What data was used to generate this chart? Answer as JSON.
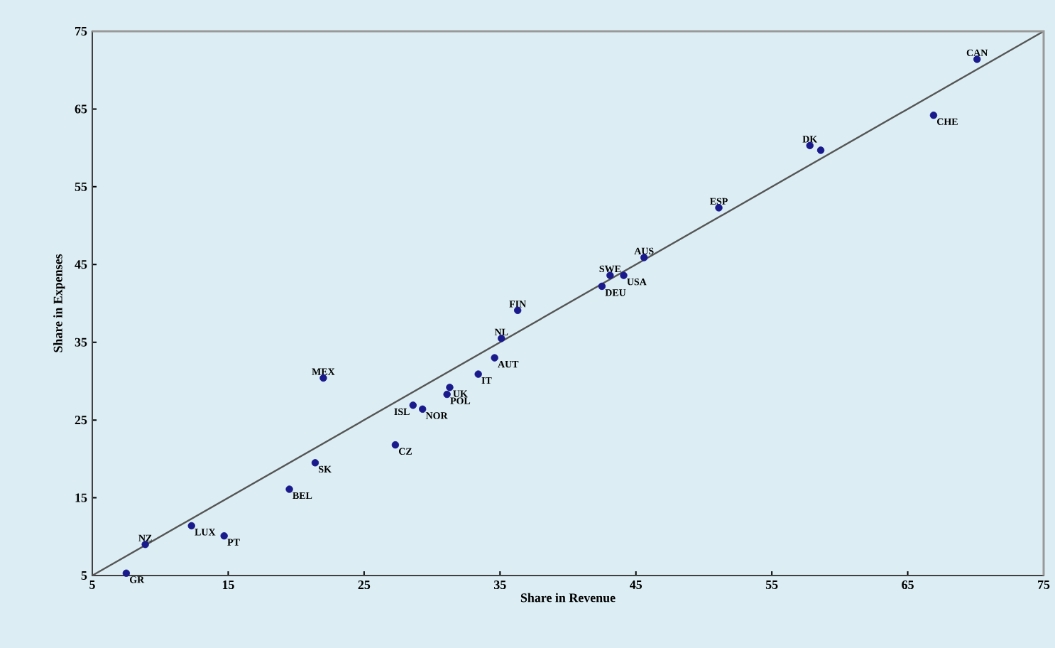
{
  "chart_data": {
    "type": "scatter",
    "xlabel": "Share in Revenue",
    "ylabel": "Share in Expenses",
    "xlim": [
      5,
      75
    ],
    "ylim": [
      5,
      75
    ],
    "xticks": [
      5,
      15,
      25,
      35,
      45,
      55,
      65,
      75
    ],
    "yticks": [
      5,
      15,
      25,
      35,
      45,
      55,
      65,
      75
    ],
    "grid": false,
    "marker": "circle",
    "series": [
      {
        "color": "#1a1a8c",
        "x": [
          7.5,
          8.9,
          12.3,
          14.7,
          19.5,
          21.4,
          22.0,
          27.3,
          28.6,
          29.3,
          31.3,
          31.1,
          33.4,
          34.6,
          35.1,
          36.3,
          42.5,
          43.1,
          44.1,
          45.6,
          51.1,
          57.8,
          58.6,
          66.9,
          70.1
        ],
        "values": [
          5.3,
          9.0,
          11.4,
          10.1,
          16.1,
          19.5,
          30.4,
          21.8,
          26.9,
          26.4,
          29.2,
          28.3,
          30.9,
          33.0,
          35.5,
          39.1,
          42.2,
          43.6,
          43.6,
          45.9,
          52.3,
          60.3,
          59.7,
          64.2,
          71.4
        ]
      },
      {
        "type": "line",
        "marker": "none",
        "color": "#555555",
        "x": [
          5,
          75
        ],
        "values": [
          5,
          75
        ]
      }
    ],
    "annotations": [
      {
        "text": "GR",
        "x": 7.5,
        "y": 5.3
      },
      {
        "text": "NZ",
        "x": 8.9,
        "y": 9.0
      },
      {
        "text": "LUX",
        "x": 12.3,
        "y": 11.4
      },
      {
        "text": "PT",
        "x": 14.7,
        "y": 10.1
      },
      {
        "text": "BEL",
        "x": 19.5,
        "y": 16.1
      },
      {
        "text": "SK",
        "x": 21.4,
        "y": 19.5
      },
      {
        "text": "MEX",
        "x": 22.0,
        "y": 30.4
      },
      {
        "text": "CZ",
        "x": 27.3,
        "y": 21.8
      },
      {
        "text": "ISL",
        "x": 28.6,
        "y": 26.9
      },
      {
        "text": "NOR",
        "x": 29.3,
        "y": 26.4
      },
      {
        "text": "UK",
        "x": 31.3,
        "y": 29.2
      },
      {
        "text": "POL",
        "x": 31.1,
        "y": 28.3
      },
      {
        "text": "IT",
        "x": 33.4,
        "y": 30.9
      },
      {
        "text": "AUT",
        "x": 34.6,
        "y": 33.0
      },
      {
        "text": "NL",
        "x": 35.1,
        "y": 35.5
      },
      {
        "text": "FIN",
        "x": 36.3,
        "y": 39.1
      },
      {
        "text": "DEU",
        "x": 42.5,
        "y": 42.2
      },
      {
        "text": "SWE",
        "x": 43.1,
        "y": 43.6
      },
      {
        "text": "USA",
        "x": 44.1,
        "y": 43.6
      },
      {
        "text": "AUS",
        "x": 45.6,
        "y": 45.9
      },
      {
        "text": "ESP",
        "x": 51.1,
        "y": 52.3
      },
      {
        "text": "DK",
        "x": 57.8,
        "y": 60.3
      },
      {
        "text": "CHE",
        "x": 66.9,
        "y": 64.2
      },
      {
        "text": "CAN",
        "x": 70.1,
        "y": 71.4
      }
    ]
  }
}
